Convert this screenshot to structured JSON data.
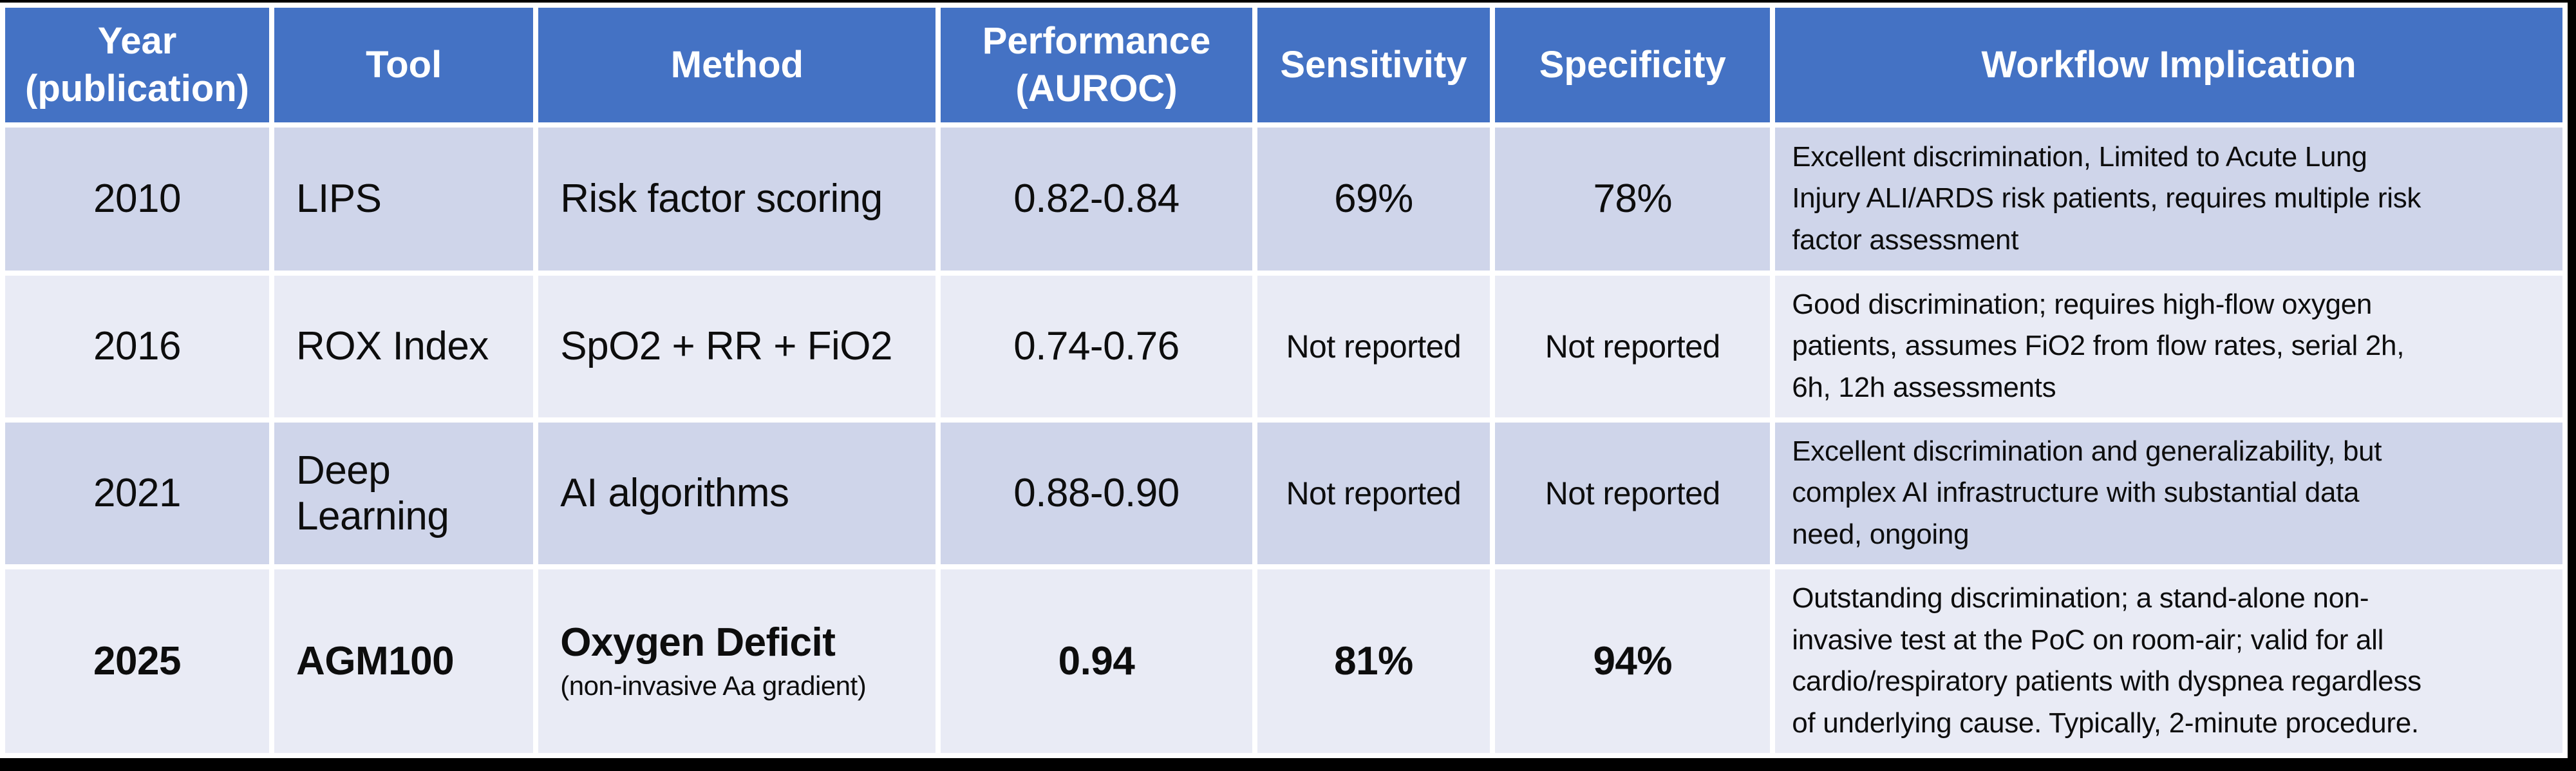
{
  "colors": {
    "header-bg": "#4472C4",
    "header-text": "#FFFFFF",
    "band-a": "#CFD5EA",
    "band-b": "#E9EBF5",
    "body-text": "#0D0D0D",
    "frame": "#000000"
  },
  "table": {
    "header": [
      "Year\n(publication)",
      "Tool",
      "Method",
      "Performance\n(AUROC)",
      "Sensitivity",
      "Specificity",
      "Workflow Implication"
    ],
    "rows": [
      {
        "year": "2010",
        "tool": "LIPS",
        "method": "Risk factor scoring",
        "method_note": "",
        "performance": "0.82-0.84",
        "sensitivity": "69%",
        "specificity": "78%",
        "workflow": "Excellent discrimination, Limited to Acute Lung\nInjury ALI/ARDS risk patients, requires multiple risk\nfactor assessment"
      },
      {
        "year": "2016",
        "tool": "ROX Index",
        "method": "SpO2 + RR + FiO2",
        "method_note": "",
        "performance": "0.74-0.76",
        "sensitivity": "Not reported",
        "specificity": "Not reported",
        "workflow": "Good discrimination; requires high-flow oxygen\npatients, assumes FiO2 from flow rates, serial 2h,\n6h, 12h assessments"
      },
      {
        "year": "2021",
        "tool": "Deep Learning",
        "method": "AI algorithms",
        "method_note": "",
        "performance": "0.88-0.90",
        "sensitivity": "Not reported",
        "specificity": "Not reported",
        "workflow": "Excellent discrimination and generalizability, but\ncomplex AI infrastructure with substantial data\nneed, ongoing"
      },
      {
        "year": "2025",
        "tool": "AGM100",
        "method": "Oxygen Deficit",
        "method_note": "(non-invasive Aa gradient)",
        "performance": "0.94",
        "sensitivity": "81%",
        "specificity": "94%",
        "workflow": "Outstanding discrimination; a stand-alone non-\ninvasive test at the PoC on room-air; valid for all\ncardio/respiratory patients with dyspnea regardless\nof underlying cause. Typically, 2-minute procedure."
      }
    ]
  }
}
